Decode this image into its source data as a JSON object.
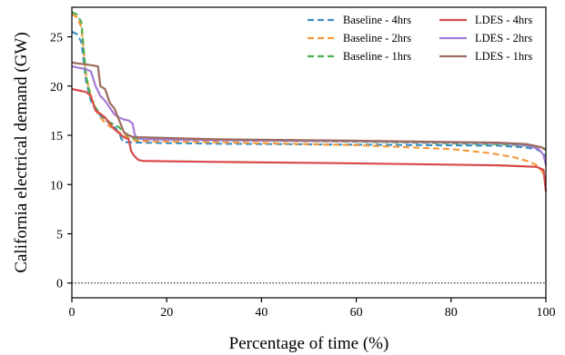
{
  "chart_data": {
    "type": "line",
    "xlabel": "Percentage of time (%)",
    "ylabel": "California electrical demand (GW)",
    "xlim": [
      0,
      100
    ],
    "ylim": [
      -1.5,
      28
    ],
    "xticks": [
      "0",
      "20",
      "40",
      "60",
      "80",
      "100"
    ],
    "yticks": [
      "0",
      "5",
      "10",
      "15",
      "20",
      "25"
    ],
    "grid": false,
    "legend": "top-right",
    "reference_line": {
      "y": 0,
      "style": "dotted"
    },
    "series": [
      {
        "name": "Baseline - 4hrs",
        "color": "#3b8fc4",
        "dash": "dashed",
        "points": [
          [
            0,
            25.5
          ],
          [
            1,
            25.3
          ],
          [
            2,
            24.5
          ],
          [
            3,
            20.5
          ],
          [
            4,
            18.5
          ],
          [
            5,
            17.6
          ],
          [
            6,
            17.0
          ],
          [
            7,
            16.6
          ],
          [
            8,
            16.2
          ],
          [
            9,
            15.9
          ],
          [
            10,
            15.2
          ],
          [
            10.5,
            14.6
          ],
          [
            11,
            14.3
          ],
          [
            12,
            14.3
          ],
          [
            15,
            14.25
          ],
          [
            30,
            14.15
          ],
          [
            60,
            14.05
          ],
          [
            90,
            13.95
          ],
          [
            95,
            13.8
          ],
          [
            98,
            13.6
          ],
          [
            99.5,
            13.2
          ],
          [
            100,
            12.8
          ]
        ]
      },
      {
        "name": "Baseline - 2hrs",
        "color": "#f59a3a",
        "dash": "dashed",
        "points": [
          [
            0,
            27.3
          ],
          [
            1,
            27.0
          ],
          [
            2,
            26.0
          ],
          [
            3,
            21.0
          ],
          [
            4,
            19.0
          ],
          [
            5,
            17.6
          ],
          [
            6,
            16.8
          ],
          [
            7,
            16.3
          ],
          [
            8,
            15.9
          ],
          [
            9,
            15.6
          ],
          [
            10,
            15.3
          ],
          [
            11,
            15.0
          ],
          [
            12,
            14.7
          ],
          [
            13,
            14.5
          ],
          [
            15,
            14.4
          ],
          [
            30,
            14.3
          ],
          [
            60,
            14.0
          ],
          [
            80,
            13.6
          ],
          [
            88,
            13.2
          ],
          [
            93,
            12.8
          ],
          [
            96,
            12.4
          ],
          [
            98,
            12.0
          ],
          [
            99.3,
            11.3
          ],
          [
            100,
            10.2
          ]
        ]
      },
      {
        "name": "Baseline - 1hrs",
        "color": "#4caf50",
        "dash": "dashed",
        "points": [
          [
            0,
            27.5
          ],
          [
            1,
            27.3
          ],
          [
            2,
            26.5
          ],
          [
            3,
            21.0
          ],
          [
            4,
            18.8
          ],
          [
            5,
            17.8
          ],
          [
            6,
            17.2
          ],
          [
            7,
            16.7
          ],
          [
            8,
            16.3
          ],
          [
            9,
            16.1
          ],
          [
            10,
            15.8
          ],
          [
            11,
            15.3
          ],
          [
            12,
            14.9
          ],
          [
            13,
            14.7
          ],
          [
            15,
            14.6
          ],
          [
            30,
            14.5
          ],
          [
            60,
            14.35
          ],
          [
            90,
            14.1
          ],
          [
            96,
            13.95
          ],
          [
            99,
            13.8
          ],
          [
            100,
            13.6
          ]
        ]
      },
      {
        "name": "LDES - 4hrs",
        "color": "#d94848",
        "dash": "solid",
        "points": [
          [
            0,
            19.7
          ],
          [
            1,
            19.6
          ],
          [
            3,
            19.4
          ],
          [
            4,
            19.0
          ],
          [
            5,
            17.5
          ],
          [
            6,
            17.2
          ],
          [
            7,
            16.8
          ],
          [
            8,
            16.2
          ],
          [
            9,
            15.6
          ],
          [
            10,
            15.2
          ],
          [
            11,
            14.8
          ],
          [
            12,
            14.6
          ],
          [
            12.5,
            13.4
          ],
          [
            13,
            13.0
          ],
          [
            14,
            12.5
          ],
          [
            15,
            12.4
          ],
          [
            30,
            12.3
          ],
          [
            60,
            12.15
          ],
          [
            90,
            11.95
          ],
          [
            98,
            11.8
          ],
          [
            99.5,
            11.5
          ],
          [
            100,
            9.3
          ]
        ]
      },
      {
        "name": "LDES - 2hrs",
        "color": "#a57cd6",
        "dash": "solid",
        "points": [
          [
            0,
            22.0
          ],
          [
            1,
            21.9
          ],
          [
            3,
            21.7
          ],
          [
            4,
            21.5
          ],
          [
            5,
            20.0
          ],
          [
            6,
            19.0
          ],
          [
            7,
            18.5
          ],
          [
            8,
            17.8
          ],
          [
            9,
            17.1
          ],
          [
            10,
            16.8
          ],
          [
            11,
            16.6
          ],
          [
            12,
            16.5
          ],
          [
            12.8,
            16.2
          ],
          [
            13.3,
            15.0
          ],
          [
            14,
            14.7
          ],
          [
            15,
            14.6
          ],
          [
            30,
            14.5
          ],
          [
            60,
            14.4
          ],
          [
            90,
            14.2
          ],
          [
            96,
            14.0
          ],
          [
            98.5,
            13.6
          ],
          [
            99.5,
            13.0
          ],
          [
            100,
            12.0
          ]
        ]
      },
      {
        "name": "LDES - 1hrs",
        "color": "#9c6b5e",
        "dash": "solid",
        "points": [
          [
            0,
            22.4
          ],
          [
            1,
            22.3
          ],
          [
            3,
            22.2
          ],
          [
            5.5,
            22.0
          ],
          [
            6,
            20.0
          ],
          [
            7,
            19.7
          ],
          [
            8,
            18.3
          ],
          [
            9,
            17.7
          ],
          [
            10,
            16.5
          ],
          [
            11,
            15.3
          ],
          [
            12,
            15.0
          ],
          [
            13,
            14.8
          ],
          [
            15,
            14.8
          ],
          [
            30,
            14.6
          ],
          [
            60,
            14.45
          ],
          [
            90,
            14.25
          ],
          [
            96,
            14.1
          ],
          [
            99,
            13.8
          ],
          [
            100,
            13.5
          ]
        ]
      }
    ]
  }
}
